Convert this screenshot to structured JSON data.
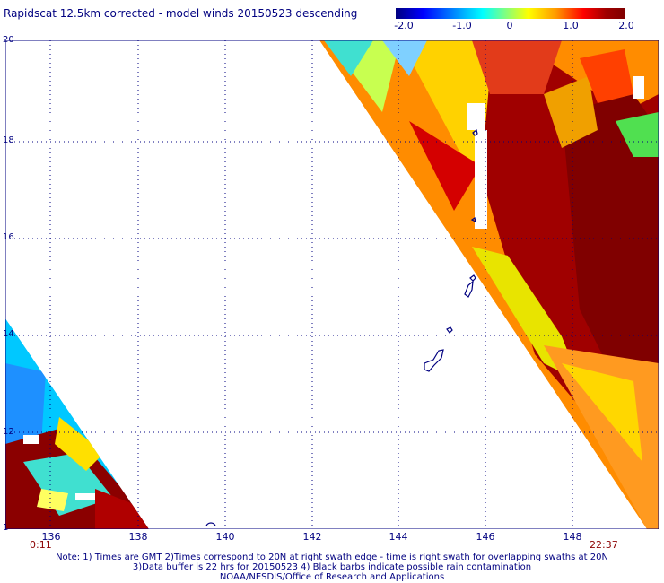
{
  "title": "Rapidscat 12.5km corrected - model winds 20150523 descending",
  "colorbar": {
    "labels": [
      "-2.0",
      "-1.0",
      "0",
      "1.0",
      "2.0"
    ],
    "min": -2.0,
    "max": 2.0
  },
  "lat_labels": [
    "20",
    "18",
    "16",
    "14",
    "12",
    "1"
  ],
  "lon_labels": [
    "136",
    "138",
    "140",
    "142",
    "144",
    "146",
    "148"
  ],
  "times": {
    "left": "0:11",
    "right": "22:37"
  },
  "notes": [
    "Note: 1) Times are GMT 2)Times correspond to 20N at right swath edge - time is right swath for overlapping swaths at 20N",
    "3)Data buffer is 22 hrs for 20150523 4) Black barbs indicate possible rain contamination",
    "NOAA/NESDIS/Office of Research and Applications"
  ]
}
